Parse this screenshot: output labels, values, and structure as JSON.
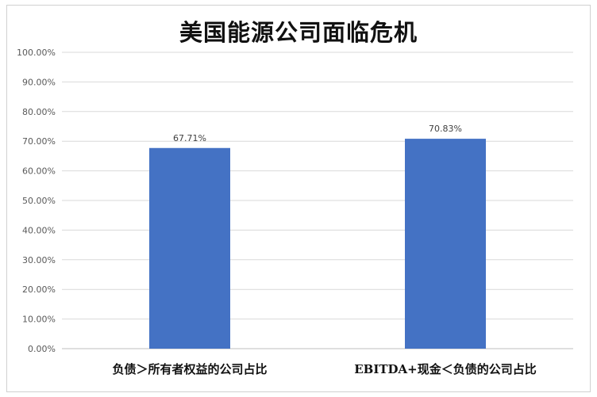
{
  "chart_data": {
    "type": "bar",
    "title": "美国能源公司面临危机",
    "categories": [
      "负债＞所有者权益的公司占比",
      "EBITDA+现金＜负债的公司占比"
    ],
    "values": [
      67.71,
      70.83
    ],
    "value_labels": [
      "67.71%",
      "70.83%"
    ],
    "ylim": [
      0,
      100
    ],
    "yticks": [
      0,
      10,
      20,
      30,
      40,
      50,
      60,
      70,
      80,
      90,
      100
    ],
    "ytick_labels": [
      "0.00%",
      "10.00%",
      "20.00%",
      "30.00%",
      "40.00%",
      "50.00%",
      "60.00%",
      "70.00%",
      "80.00%",
      "90.00%",
      "100.00%"
    ],
    "grid": true,
    "legend": "none",
    "bar_color": "#4472c4"
  }
}
